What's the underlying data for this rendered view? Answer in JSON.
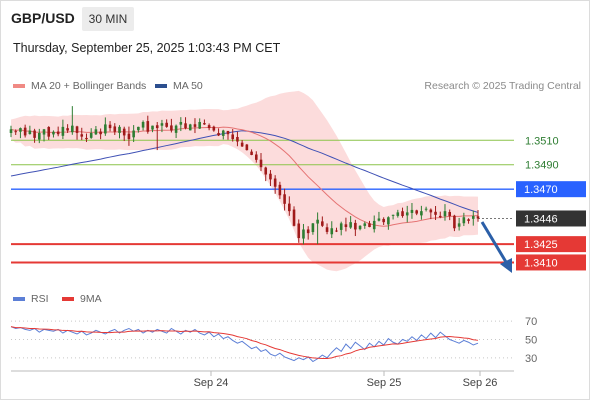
{
  "header": {
    "symbol": "GBP/USD",
    "timeframe": "30 MIN",
    "datetime": "Thursday, September 25, 2025 1:03:43 PM CET"
  },
  "legend": {
    "ma20_label": "MA 20 + Bollinger Bands",
    "ma50_label": "MA 50",
    "rsi_label": "RSI",
    "rsi_ma_label": "9MA",
    "credit": "Research © 2025 Trading Central"
  },
  "colors": {
    "up": "#2e7d32",
    "down": "#a01a1a",
    "ma20": "#e57373",
    "bollinger_fill": "#fbd3d3",
    "ma50": "#3f51b5",
    "level_green": "#8bc34a",
    "level_blue": "#2962ff",
    "level_red": "#e53935",
    "current": "#333333",
    "rsi": "#5c7fd6",
    "rsi_ma": "#e53935",
    "arrow": "#2b5fa8"
  },
  "chart_data": {
    "type": "candlestick",
    "x_ticks": [
      "Sep 24",
      "Sep 26",
      "Sep 25"
    ],
    "price_range": [
      1.3394,
      1.3543
    ],
    "levels": [
      {
        "value": 1.351,
        "label": "1.3510",
        "kind": "resistance-minor"
      },
      {
        "value": 1.349,
        "label": "1.3490",
        "kind": "resistance-minor"
      },
      {
        "value": 1.347,
        "label": "1.3470",
        "kind": "pivot"
      },
      {
        "value": 1.3446,
        "label": "1.3446",
        "kind": "current"
      },
      {
        "value": 1.3425,
        "label": "1.3425",
        "kind": "target"
      },
      {
        "value": 1.341,
        "label": "1.3410",
        "kind": "target"
      }
    ],
    "close": [
      1.3519,
      1.3517,
      1.352,
      1.3514,
      1.3518,
      1.3512,
      1.3516,
      1.3519,
      1.3513,
      1.3517,
      1.3515,
      1.3521,
      1.3518,
      1.3522,
      1.3516,
      1.3513,
      1.3511,
      1.3516,
      1.3519,
      1.3515,
      1.3523,
      1.352,
      1.3517,
      1.3521,
      1.3514,
      1.3511,
      1.3518,
      1.3521,
      1.3525,
      1.3517,
      1.3522,
      1.352,
      1.3524,
      1.3521,
      1.3518,
      1.3522,
      1.3525,
      1.352,
      1.3523,
      1.3521,
      1.3525,
      1.3523,
      1.352,
      1.3518,
      1.3514,
      1.3518,
      1.3515,
      1.3511,
      1.3509,
      1.3505,
      1.3502,
      1.3498,
      1.3494,
      1.3488,
      1.3482,
      1.3478,
      1.3472,
      1.3465,
      1.3458,
      1.3452,
      1.344,
      1.343,
      1.3437,
      1.3434,
      1.3442,
      1.3445,
      1.344,
      1.3435,
      1.3438,
      1.3436,
      1.3442,
      1.3439,
      1.3443,
      1.3437,
      1.344,
      1.3442,
      1.3439,
      1.3444,
      1.3446,
      1.3443,
      1.3447,
      1.3449,
      1.3451,
      1.3448,
      1.3451,
      1.3453,
      1.345,
      1.3452,
      1.3454,
      1.3451,
      1.3449,
      1.3447,
      1.3452,
      1.3448,
      1.3438,
      1.3442,
      1.3447,
      1.3444,
      1.3448,
      1.3446
    ],
    "rsi": [
      64,
      62,
      63,
      61,
      60,
      62,
      58,
      61,
      60,
      59,
      61,
      57,
      60,
      58,
      56,
      59,
      55,
      57,
      60,
      58,
      56,
      59,
      61,
      57,
      60,
      62,
      59,
      61,
      57,
      60,
      58,
      61,
      59,
      57,
      62,
      59,
      56,
      60,
      58,
      61,
      57,
      55,
      58,
      53,
      56,
      51,
      53,
      49,
      46,
      48,
      44,
      40,
      42,
      37,
      39,
      34,
      32,
      35,
      31,
      29,
      27,
      30,
      28,
      31,
      26,
      29,
      33,
      30,
      36,
      41,
      37,
      45,
      40,
      47,
      43,
      39,
      46,
      42,
      48,
      44,
      51,
      47,
      45,
      50,
      48,
      53,
      49,
      55,
      51,
      57,
      52,
      58,
      54,
      50,
      48,
      46,
      49,
      47,
      44,
      46
    ],
    "rsi_ticks": [
      70,
      50,
      30
    ]
  }
}
